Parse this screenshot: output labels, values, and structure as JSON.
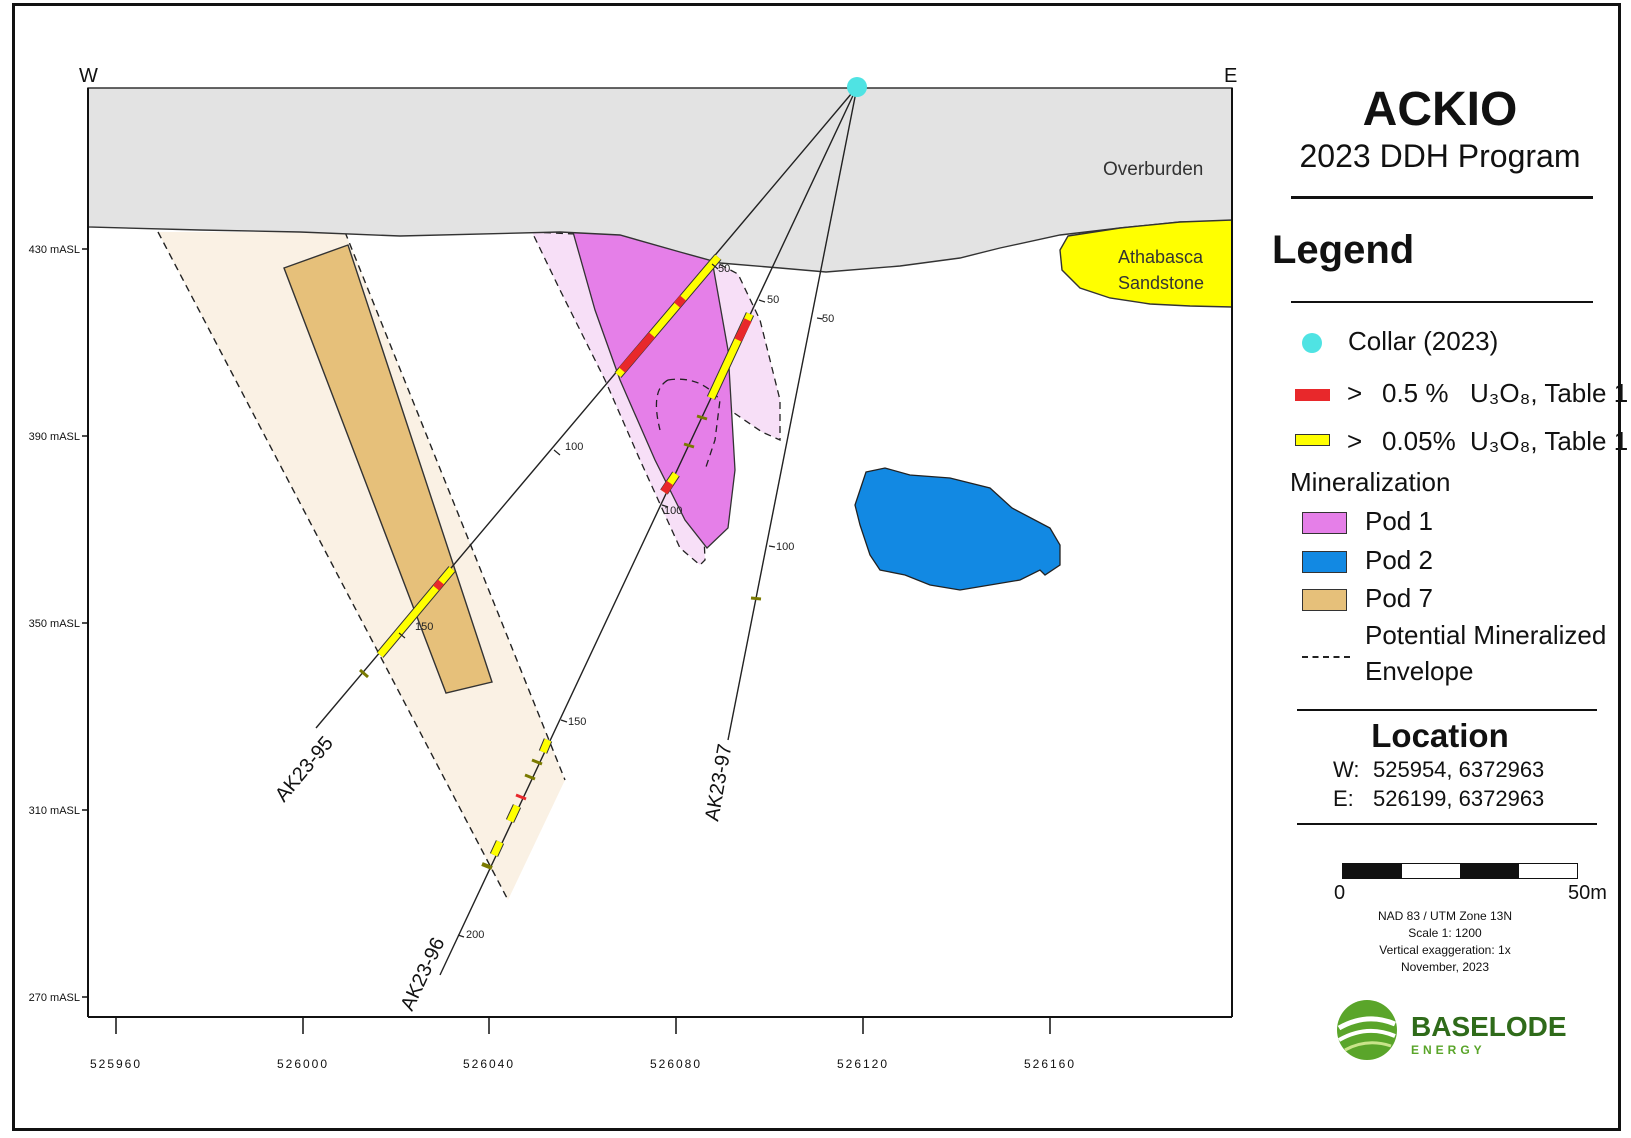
{
  "map": {
    "direction_west": "W",
    "direction_east": "E",
    "units": {
      "overburden": "Overburden",
      "sandstone_line1": "Athabasca",
      "sandstone_line2": "Sandstone"
    },
    "elevation_labels": [
      "430 mASL",
      "390 mASL",
      "350 mASL",
      "310 mASL",
      "270 mASL"
    ],
    "easting_labels": [
      "525960",
      "526000",
      "526040",
      "526080",
      "526120",
      "526160"
    ],
    "holes": [
      {
        "name": "AK23-95",
        "depth_ticks": [
          "50",
          "100",
          "150"
        ]
      },
      {
        "name": "AK23-96",
        "depth_ticks": [
          "50",
          "100",
          "150",
          "200"
        ]
      },
      {
        "name": "AK23-97",
        "depth_ticks": [
          "50",
          "100"
        ]
      }
    ]
  },
  "colors": {
    "overburden": "#e3e3e3",
    "sandstone": "#ffff00",
    "collar": "#4fe3e3",
    "pod1": "#e57fe8",
    "pod1_envelope": "#f7dff7",
    "pod2": "#1289e3",
    "pod7": "#e6c07a",
    "pod7_envelope": "#faf1e4",
    "high_grade": "#e8282b",
    "low_grade": "#ffff00"
  },
  "legend": {
    "title": "ACKIO",
    "subtitle": "2023 DDH Program",
    "heading": "Legend",
    "collar": "Collar (2023)",
    "high_grade_symbol": ">",
    "high_grade_value": "0.5 %",
    "high_grade_formula": "U₃O₈, Table 1",
    "low_grade_symbol": ">",
    "low_grade_value": "0.05%",
    "low_grade_formula": "U₃O₈, Table 1",
    "mineralization_heading": "Mineralization",
    "pod1": "Pod 1",
    "pod2": "Pod 2",
    "pod7": "Pod 7",
    "envelope_line1": "Potential Mineralized",
    "envelope_line2": "Envelope"
  },
  "location": {
    "heading": "Location",
    "west_label": "W:",
    "west_value": "525954, 6372963",
    "east_label": "E:",
    "east_value": "526199, 6372963"
  },
  "scale": {
    "start": "0",
    "end": "50m",
    "projection": "NAD 83 / UTM Zone 13N",
    "ratio": "Scale 1: 1200",
    "exaggeration": "Vertical exaggeration: 1x",
    "date": "November, 2023"
  },
  "logo": {
    "name": "BASELODE",
    "tagline": "ENERGY"
  }
}
